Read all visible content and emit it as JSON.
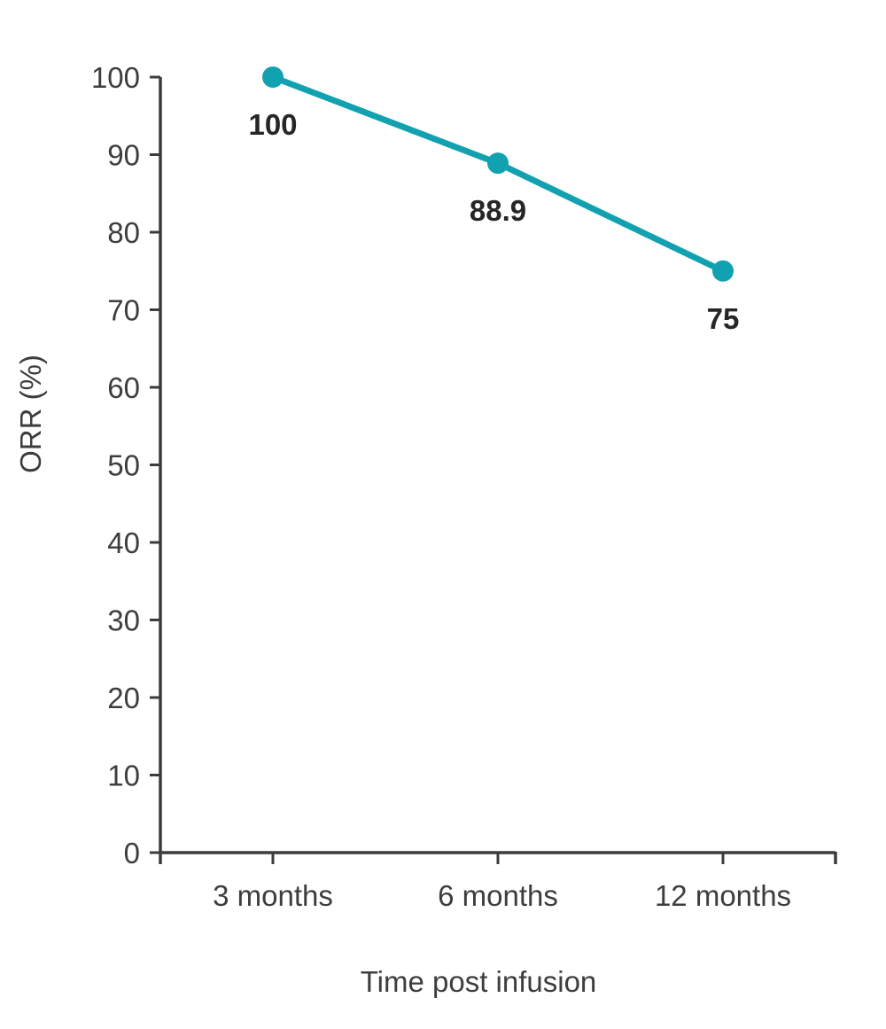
{
  "page": {
    "background": "#FFFFFF"
  },
  "chart_data": {
    "type": "line",
    "title": "",
    "categories": [
      "3 months",
      "6 months",
      "12 months"
    ],
    "series": [
      {
        "name": "ORR",
        "values": [
          100,
          88.9,
          75
        ],
        "labels": [
          "100",
          "88.9",
          "75"
        ],
        "label_position": "below"
      }
    ],
    "xlabel": "Time post infusion",
    "ylabel": "ORR (%)",
    "ylim": [
      0,
      100
    ],
    "yticks": [
      0,
      10,
      20,
      30,
      40,
      50,
      60,
      70,
      80,
      90,
      100
    ],
    "grid": false,
    "legend": "none",
    "colors": {
      "line": "#12A1B0",
      "marker": "#12A1B0",
      "axis": "#3C3C3C",
      "tick_label": "#3D3D3D",
      "axis_title": "#3D3D3D",
      "data_label": "#262626"
    }
  }
}
